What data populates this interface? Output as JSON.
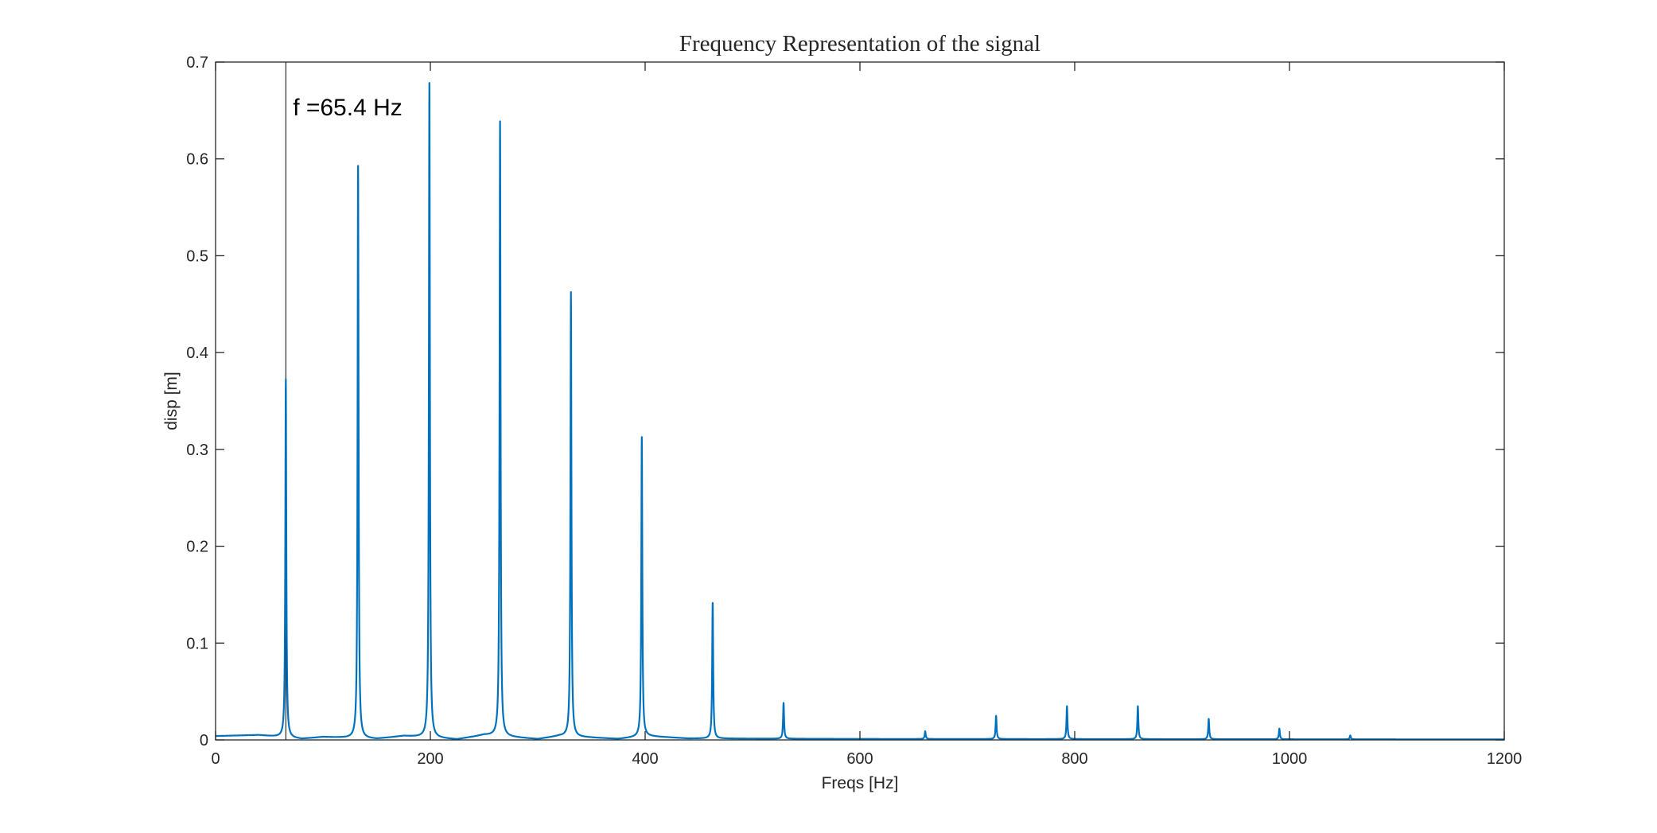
{
  "chart_data": {
    "type": "line",
    "title": "Frequency Representation of the signal",
    "xlabel": "Freqs [Hz]",
    "ylabel": "disp [m]",
    "xlim": [
      0,
      1200
    ],
    "ylim": [
      0,
      0.7
    ],
    "xticks": [
      0,
      200,
      400,
      600,
      800,
      1000,
      1200
    ],
    "xtick_labels": [
      "0",
      "200",
      "400",
      "600",
      "800",
      "1000",
      "1200"
    ],
    "yticks": [
      0,
      0.1,
      0.2,
      0.3,
      0.4,
      0.5,
      0.6,
      0.7
    ],
    "ytick_labels": [
      "0",
      "0.1",
      "0.2",
      "0.3",
      "0.4",
      "0.5",
      "0.6",
      "0.7"
    ],
    "grid": false,
    "series_color": "#0072BD",
    "reference_line": {
      "x": 65.4,
      "color": "#000000"
    },
    "annotation": {
      "text": "f =65.4 Hz",
      "x": 72,
      "y": 0.645
    },
    "baseline": [
      {
        "x": 0,
        "y": 0.004
      },
      {
        "x": 40,
        "y": 0.005
      },
      {
        "x": 80,
        "y": 0.001
      },
      {
        "x": 100,
        "y": 0.003
      },
      {
        "x": 150,
        "y": 0.001
      },
      {
        "x": 175,
        "y": 0.004
      },
      {
        "x": 225,
        "y": 0.0005
      },
      {
        "x": 250,
        "y": 0.005
      },
      {
        "x": 300,
        "y": 0.0008
      },
      {
        "x": 320,
        "y": 0.004
      },
      {
        "x": 375,
        "y": 0.001
      },
      {
        "x": 400,
        "y": 0.004
      },
      {
        "x": 440,
        "y": 0.0015
      },
      {
        "x": 600,
        "y": 0.001
      },
      {
        "x": 1200,
        "y": 0.0005
      }
    ],
    "peaks": [
      {
        "x": 65.4,
        "y": 0.37
      },
      {
        "x": 132.7,
        "y": 0.591
      },
      {
        "x": 199.1,
        "y": 0.676
      },
      {
        "x": 264.9,
        "y": 0.635
      },
      {
        "x": 330.9,
        "y": 0.459
      },
      {
        "x": 396.9,
        "y": 0.309
      },
      {
        "x": 462.9,
        "y": 0.14
      },
      {
        "x": 528.9,
        "y": 0.037
      },
      {
        "x": 660.8,
        "y": 0.008
      },
      {
        "x": 726.8,
        "y": 0.024
      },
      {
        "x": 792.8,
        "y": 0.034
      },
      {
        "x": 858.8,
        "y": 0.034
      },
      {
        "x": 924.8,
        "y": 0.021
      },
      {
        "x": 990.6,
        "y": 0.011
      },
      {
        "x": 1056.6,
        "y": 0.004
      }
    ]
  }
}
